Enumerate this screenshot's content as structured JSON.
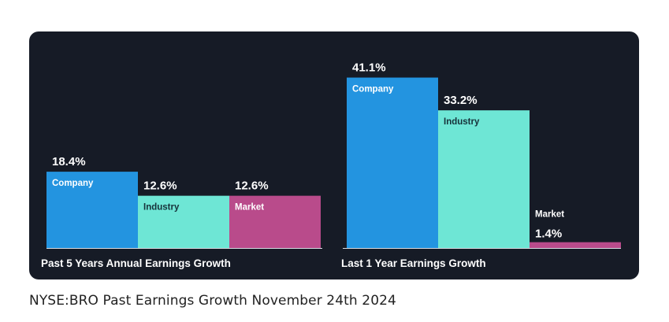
{
  "caption": "NYSE:BRO Past Earnings Growth November 24th 2024",
  "colors": {
    "background": "#161b26",
    "company": "#2394e0",
    "industry": "#6ee6d5",
    "market": "#b94b8b",
    "axis": "#d7dbe2"
  },
  "chart_data": [
    {
      "type": "bar",
      "title": "Past 5 Years Annual Earnings Growth",
      "categories": [
        "Company",
        "Industry",
        "Market"
      ],
      "values": [
        18.4,
        12.6,
        12.6
      ],
      "value_labels": [
        "18.4%",
        "12.6%",
        "12.6%"
      ],
      "unit": "%",
      "ylim": [
        0,
        45
      ]
    },
    {
      "type": "bar",
      "title": "Last 1 Year Earnings Growth",
      "categories": [
        "Company",
        "Industry",
        "Market"
      ],
      "values": [
        41.1,
        33.2,
        1.4
      ],
      "value_labels": [
        "41.1%",
        "33.2%",
        "1.4%"
      ],
      "unit": "%",
      "ylim": [
        0,
        45
      ]
    }
  ]
}
